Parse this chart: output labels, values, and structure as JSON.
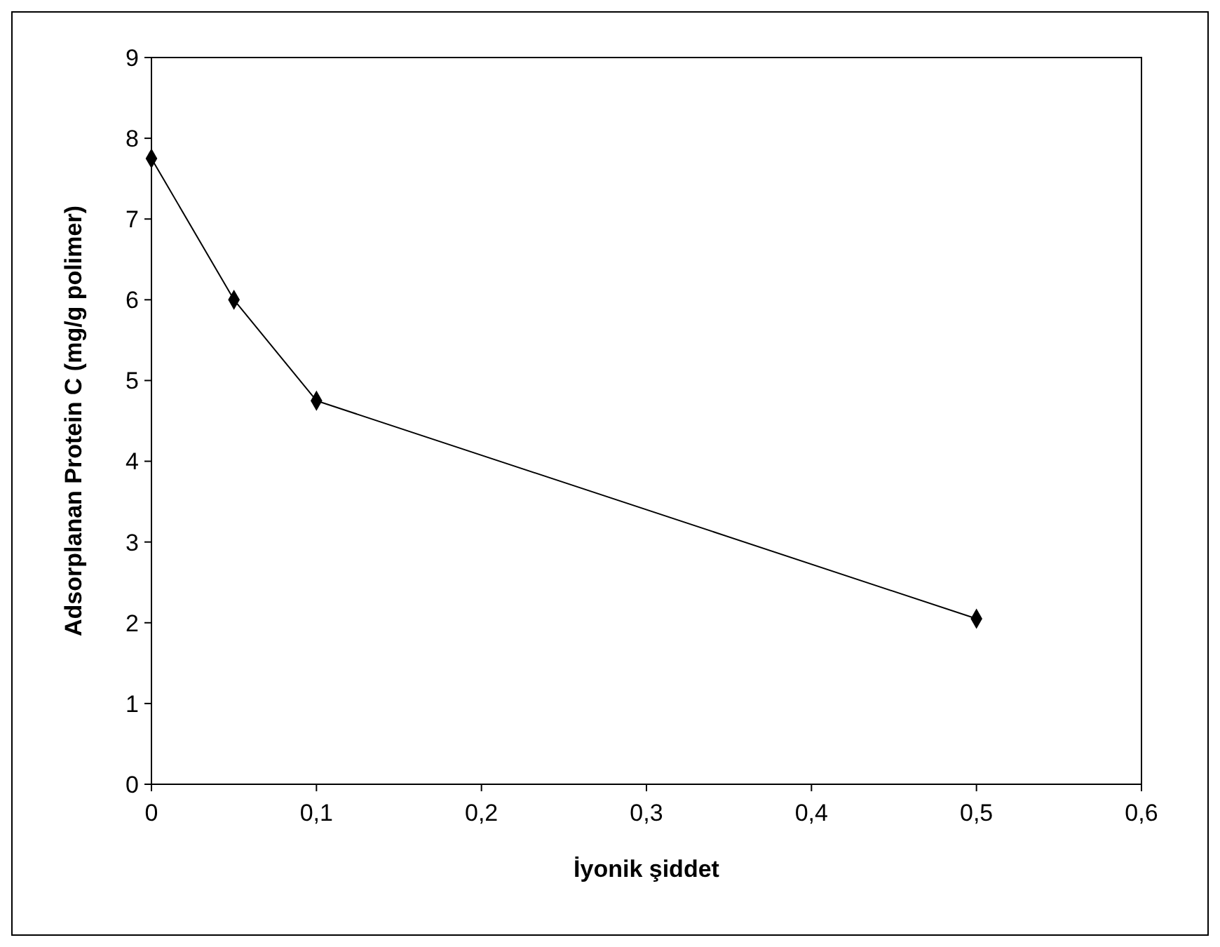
{
  "chart_data": {
    "type": "line",
    "xlabel": "İyonik şiddet",
    "ylabel": "Adsorplanan Protein C (mg/g polimer)",
    "x": [
      0,
      0.05,
      0.1,
      0.5
    ],
    "series": [
      {
        "color": "#000000",
        "values": [
          7.75,
          6.0,
          4.75,
          2.05
        ]
      }
    ],
    "xlim": [
      0,
      0.6
    ],
    "xticks": [
      0,
      {
        "value": 0.1,
        "label": "0,1"
      },
      {
        "value": 0.2,
        "label": "0,2"
      },
      {
        "value": 0.3,
        "label": "0,3"
      },
      {
        "value": 0.4,
        "label": "0,4"
      },
      {
        "value": 0.5,
        "label": "0,5"
      },
      {
        "value": 0.6,
        "label": "0,6"
      }
    ],
    "ylim": [
      0,
      9
    ],
    "yticks": [
      0,
      1,
      2,
      3,
      4,
      5,
      6,
      7,
      8,
      9
    ],
    "marker": "diamond",
    "grid": false
  }
}
